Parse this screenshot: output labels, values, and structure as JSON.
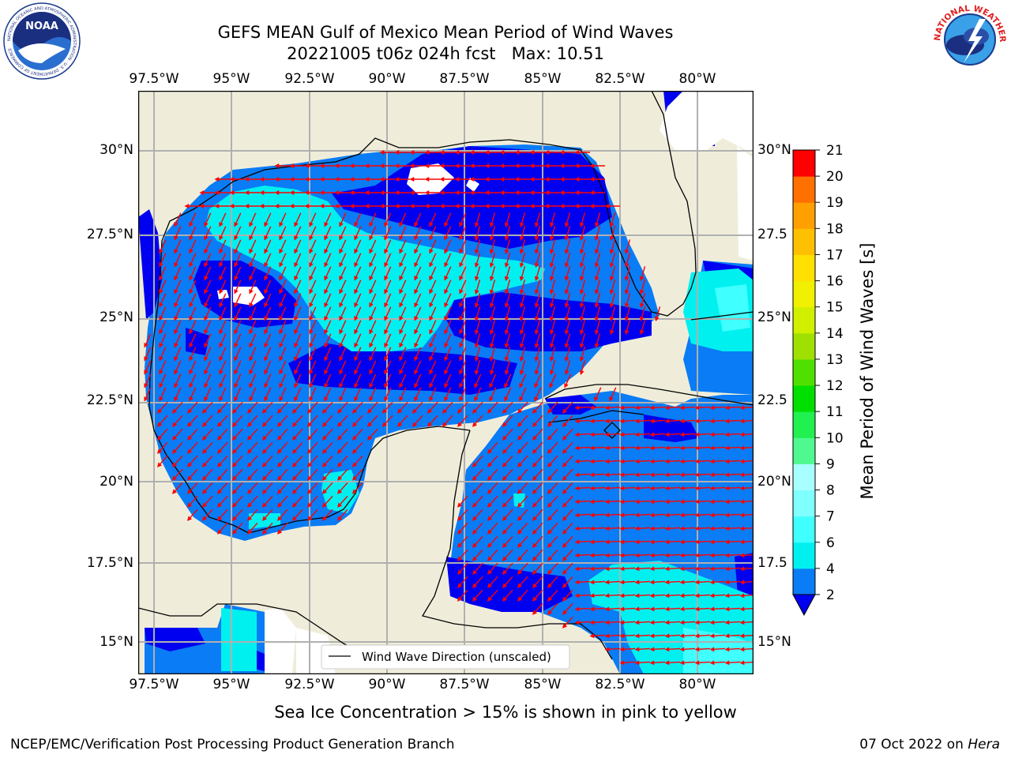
{
  "header": {
    "title": "GEFS MEAN Gulf of Mexico Mean Period of Wind Waves",
    "subtitle": "20221005 t06z 024h fcst   Max: 10.51"
  },
  "logos": {
    "noaa": {
      "text": "NOAA",
      "ring_text": "NATIONAL OCEANIC AND ATMOSPHERIC ADMINISTRATION · U.S. DEPARTMENT OF COMMERCE"
    },
    "nws": {
      "ring_text": "NATIONAL WEATHER SERVICE"
    }
  },
  "map": {
    "lon_labels": [
      "97.5°W",
      "95°W",
      "92.5°W",
      "90°W",
      "87.5°W",
      "85°W",
      "82.5°W",
      "80°W"
    ],
    "lat_labels_left": [
      "30°N",
      "27.5°N",
      "25°N",
      "22.5°N",
      "20°N",
      "17.5°N",
      "15°N"
    ],
    "lat_labels_right": [
      "30°N",
      "27.5",
      "25°N",
      "22.5",
      "20°N",
      "17.5",
      "15°N"
    ],
    "legend_label": "Wind Wave Direction (unscaled)",
    "colors": {
      "land": "#efedda",
      "ocean_2_4": "#0a7cf5",
      "ocean_lt2": "#0000f0",
      "ocean_4_6": "#00f0f0",
      "arrow": "#ff0000",
      "grid": "#b0b0b0"
    }
  },
  "colorbar": {
    "label": "Mean Period of Wind Waves [s]",
    "ticks": [
      "2",
      "4",
      "6",
      "7",
      "8",
      "9",
      "10",
      "11",
      "12",
      "13",
      "14",
      "15",
      "16",
      "17",
      "18",
      "19",
      "20",
      "21"
    ],
    "colors": [
      "#0a7cf5",
      "#00f0f0",
      "#40ffff",
      "#80ffff",
      "#a8ffff",
      "#50f890",
      "#20f050",
      "#00e000",
      "#50e000",
      "#a0e000",
      "#d0f000",
      "#f0f000",
      "#ffe000",
      "#ffc000",
      "#ffa000",
      "#ff7000",
      "#ff3c00",
      "#ff0000"
    ],
    "under_color": "#0000f0"
  },
  "caption": "Sea Ice Concentration > 15% is shown in pink to yellow",
  "footer": {
    "left": "NCEP/EMC/Verification Post Processing Product Generation Branch",
    "right_date": "07 Oct 2022 on ",
    "right_host": "Hera"
  }
}
